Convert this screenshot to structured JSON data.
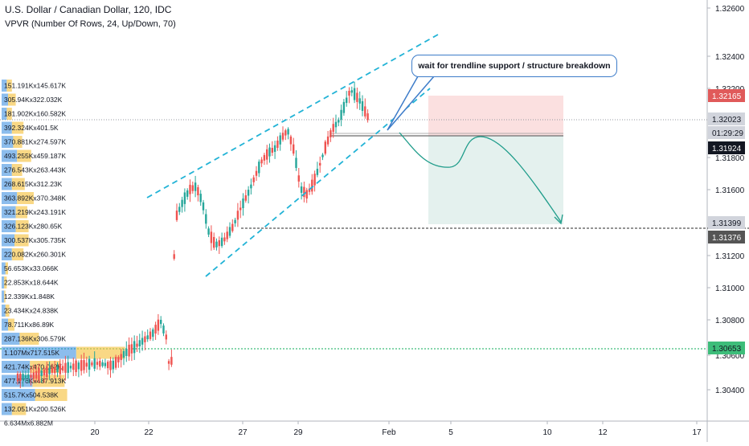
{
  "header": {
    "symbol_title": "U.S. Dollar / Canadian Dollar, 120, IDC",
    "indicator": "VPVR (Number Of Rows, 24, Up/Down, 70)"
  },
  "annotation": {
    "note": "wait for trendline support / structure breakdown"
  },
  "chart_data": {
    "type": "candlestick",
    "price_axis": {
      "ticks": [
        "1.32600",
        "1.32400",
        "1.32200",
        "1.31800",
        "1.31600",
        "1.31200",
        "1.31000",
        "1.30800",
        "1.30600",
        "1.30400"
      ]
    },
    "time_axis": {
      "ticks": [
        "20",
        "22",
        "27",
        "29",
        "Feb",
        "5",
        "10",
        "12",
        "17"
      ]
    },
    "price_tags": [
      {
        "label": "1.32165",
        "bg": "#e05a5a",
        "fg": "#ffffff"
      },
      {
        "label": "1.32023",
        "bg": "#d1d4dc",
        "fg": "#131722"
      },
      {
        "label": "01:29:29",
        "bg": "#d1d4dc",
        "fg": "#131722"
      },
      {
        "label": "1.31924",
        "bg": "#131722",
        "fg": "#ffffff"
      },
      {
        "label": "1.31399",
        "bg": "#d1d4dc",
        "fg": "#131722"
      },
      {
        "label": "1.31376",
        "bg": "#555555",
        "fg": "#ffffff"
      },
      {
        "label": "1.30653",
        "bg": "#3dbd7a",
        "fg": "#131722"
      }
    ],
    "volume_profile": [
      "151.191Kx145.617K",
      "305.94Kx322.032K",
      "181.902Kx160.582K",
      "392.324Kx401.5K",
      "370.881Kx274.597K",
      "493.255Kx459.187K",
      "276.543Kx263.443K",
      "268.615Kx312.23K",
      "363.892Kx370.348K",
      "321.219Kx243.191K",
      "326.123Kx280.65K",
      "300.537Kx305.735K",
      "220.082Kx260.301K",
      "56.653Kx33.066K",
      "22.853Kx18.644K",
      "12.339Kx1.848K",
      "23.434Kx24.838K",
      "78.711Kx86.89K",
      "287.136Kx306.579K",
      "1.107Mx717.515K",
      "421.74Kx470.062K",
      "477.176Kx487.913K",
      "515.7Kx504.538K",
      "132.051Kx200.526K",
      "6.634Mx6.882M"
    ],
    "colors": {
      "up": "#26a69a",
      "down": "#ef5350",
      "trendline": "#22b3d6",
      "vp_up": "#2e86de",
      "vp_down": "#f6c344"
    }
  }
}
